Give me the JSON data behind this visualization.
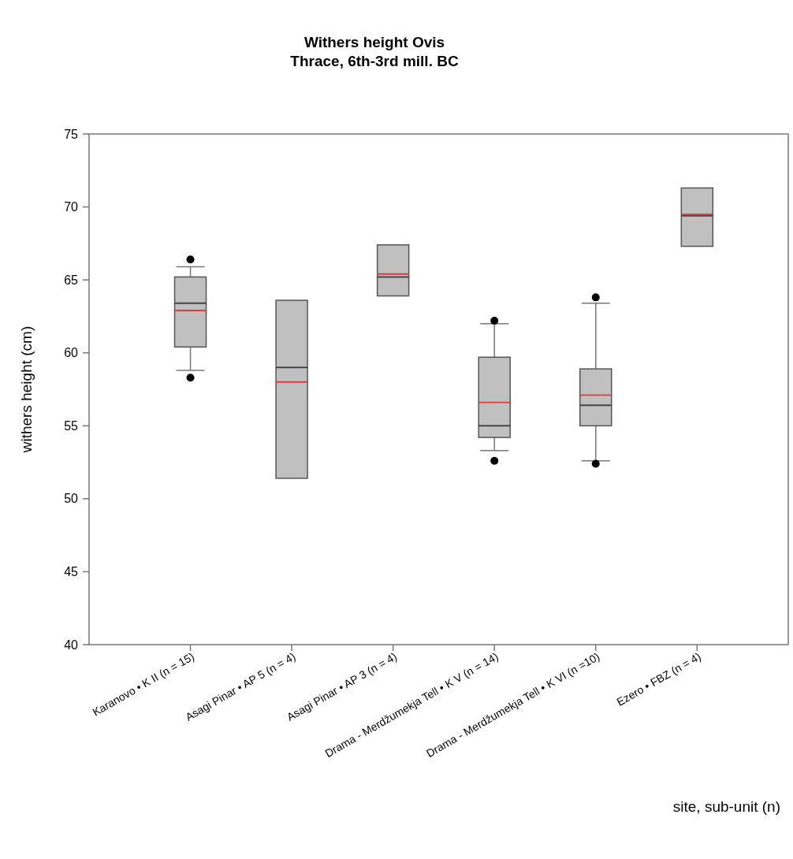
{
  "chart_data": {
    "type": "box",
    "title": "Withers height Ovis",
    "subtitle": "Thrace, 6th-3rd mill. BC",
    "xlabel": "site, sub-unit (n)",
    "ylabel": "withers height (cm)",
    "categories": [
      "Karanovo • K II (n = 15)",
      "Asagi Pinar • AP 5 (n = 4)",
      "Asagi Pinar • AP 3 (n = 4)",
      "Drama - Merdžumekja Tell • K V (n = 14)",
      "Drama - Merdžumekja Tell • K VI (n =10)",
      "Ezero • FBZ (n = 4)"
    ],
    "series": [
      {
        "color": "#c0c0c0",
        "boxes": [
          {
            "low": 58.8,
            "q1": 60.4,
            "median": 63.4,
            "q3": 65.2,
            "high": 65.9,
            "mean": 62.9,
            "outliers": [
              66.4,
              58.3
            ]
          },
          {
            "low": 51.4,
            "q1": 51.4,
            "median": 59.0,
            "q3": 63.6,
            "high": 63.6,
            "mean": 58.0
          },
          {
            "low": 63.9,
            "q1": 63.9,
            "median": 65.2,
            "q3": 67.4,
            "high": 67.4,
            "mean": 65.4
          },
          {
            "low": 53.3,
            "q1": 54.2,
            "median": 55.0,
            "q3": 59.7,
            "high": 62.0,
            "mean": 56.6,
            "outliers": [
              62.2,
              52.6
            ]
          },
          {
            "low": 52.6,
            "q1": 55.0,
            "median": 56.4,
            "q3": 58.9,
            "high": 63.4,
            "mean": 57.1,
            "outliers": [
              63.8,
              52.4
            ]
          },
          {
            "low": 67.3,
            "q1": 67.3,
            "median": 69.4,
            "q3": 71.3,
            "high": 71.3,
            "mean": 69.5
          }
        ]
      }
    ],
    "ylim": [
      40,
      75
    ],
    "yticks": [
      40,
      45,
      50,
      55,
      60,
      65,
      70,
      75
    ]
  }
}
